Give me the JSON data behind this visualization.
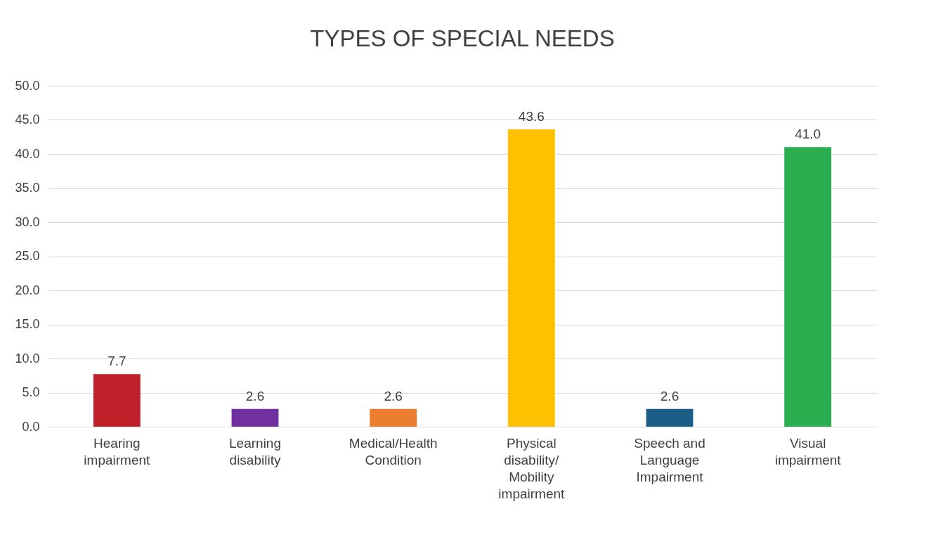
{
  "chart_data": {
    "type": "bar",
    "title": "TYPES OF SPECIAL NEEDS",
    "categories": [
      "Hearing\nimpairment",
      "Learning\ndisability",
      "Medical/Health\nCondition",
      "Physical\ndisability/\nMobility\nimpairment",
      "Speech and\nLanguage\nImpairment",
      "Visual\nimpairment"
    ],
    "values": [
      7.7,
      2.6,
      2.6,
      43.6,
      2.6,
      41.0
    ],
    "colors": [
      "#c0202a",
      "#7030a0",
      "#ed7d31",
      "#ffc000",
      "#1b5f86",
      "#2aae4f"
    ],
    "value_labels": [
      "7.7",
      "2.6",
      "2.6",
      "43.6",
      "2.6",
      "41.0"
    ],
    "ylim": [
      0,
      50
    ],
    "yticks": [
      {
        "value": 0,
        "label": "0.0"
      },
      {
        "value": 5,
        "label": "5.0"
      },
      {
        "value": 10,
        "label": "10.0"
      },
      {
        "value": 15,
        "label": "15.0"
      },
      {
        "value": 20,
        "label": "20.0"
      },
      {
        "value": 25,
        "label": "25.0"
      },
      {
        "value": 30,
        "label": "30.0"
      },
      {
        "value": 35,
        "label": "35.0"
      },
      {
        "value": 40,
        "label": "40.0"
      },
      {
        "value": 45,
        "label": "45.0"
      },
      {
        "value": 50,
        "label": "50.0"
      }
    ],
    "grid": "y"
  }
}
